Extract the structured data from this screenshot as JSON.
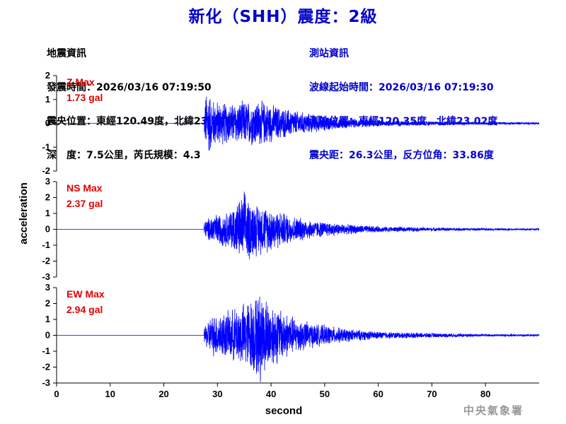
{
  "title": "新化（SHH）震度：2級",
  "earthquake_info": {
    "heading": "地震資訊",
    "origin_time": "發震時間：2026/03/16 07:19:50",
    "epicenter": "震央位置：東經120.49度，北緯23.22度",
    "depth_magnitude": "深　度：7.5公里，芮氏規模：4.3"
  },
  "station_info": {
    "heading": "測站資訊",
    "wave_start": "波線起始時間：2026/03/16 07:19:30",
    "station_location": "測站位置：東經120.35度，北緯23.02度",
    "distance": "震央距：26.3公里，反方位角：33.86度"
  },
  "agency": "中央氣象署",
  "colors": {
    "title": "#0000cc",
    "trace": "#0000ff",
    "max_label": "#e00000",
    "agency": "#999999"
  },
  "chart_data": [
    {
      "type": "line",
      "component": "Z",
      "max_label": "Z Max",
      "max_value": "1.73 gal",
      "peak": 1.73,
      "ylim": [
        -2,
        2
      ],
      "yticks": [
        2,
        1,
        0,
        -1,
        -2
      ],
      "xlim": [
        0,
        90
      ],
      "onset_s": 27.5,
      "envelope": [
        [
          27.5,
          0.4
        ],
        [
          28,
          1.73
        ],
        [
          29,
          1.1
        ],
        [
          32,
          0.9
        ],
        [
          35,
          1.0
        ],
        [
          38,
          1.05
        ],
        [
          42,
          0.7
        ],
        [
          47,
          0.45
        ],
        [
          53,
          0.25
        ],
        [
          60,
          0.15
        ],
        [
          70,
          0.09
        ],
        [
          80,
          0.06
        ],
        [
          90,
          0.05
        ]
      ]
    },
    {
      "type": "line",
      "component": "NS",
      "max_label": "NS Max",
      "max_value": "2.37 gal",
      "peak": 2.37,
      "ylim": [
        -3,
        3
      ],
      "yticks": [
        3,
        2,
        1,
        0,
        -1,
        -2,
        -3
      ],
      "xlim": [
        0,
        90
      ],
      "onset_s": 27.5,
      "envelope": [
        [
          27.5,
          0.5
        ],
        [
          29,
          1.0
        ],
        [
          32,
          1.2
        ],
        [
          35,
          2.37
        ],
        [
          37,
          1.8
        ],
        [
          40,
          1.5
        ],
        [
          44,
          0.9
        ],
        [
          48,
          0.6
        ],
        [
          54,
          0.35
        ],
        [
          60,
          0.2
        ],
        [
          70,
          0.12
        ],
        [
          80,
          0.08
        ],
        [
          90,
          0.06
        ]
      ]
    },
    {
      "type": "line",
      "component": "EW",
      "max_label": "EW Max",
      "max_value": "2.94 gal",
      "peak": 2.94,
      "ylim": [
        -3,
        3
      ],
      "yticks": [
        3,
        2,
        1,
        0,
        -1,
        -2,
        -3
      ],
      "xlim": [
        0,
        90
      ],
      "onset_s": 27.5,
      "envelope": [
        [
          27.5,
          0.6
        ],
        [
          29,
          1.4
        ],
        [
          32,
          1.6
        ],
        [
          35,
          2.2
        ],
        [
          38,
          2.94
        ],
        [
          40,
          2.2
        ],
        [
          44,
          1.3
        ],
        [
          48,
          0.8
        ],
        [
          54,
          0.45
        ],
        [
          60,
          0.25
        ],
        [
          70,
          0.15
        ],
        [
          80,
          0.09
        ],
        [
          90,
          0.07
        ]
      ]
    }
  ],
  "x_axis": {
    "label": "second",
    "ticks": [
      0,
      10,
      20,
      30,
      40,
      50,
      60,
      70,
      80
    ],
    "range": [
      0,
      90
    ]
  },
  "y_axis_label": "acceleration"
}
